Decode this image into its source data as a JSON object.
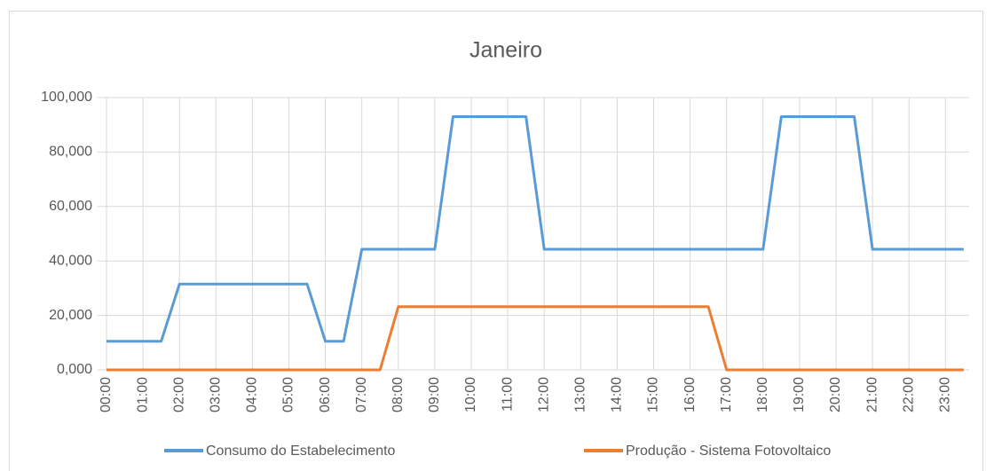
{
  "chart_data": {
    "type": "line",
    "title": "Janeiro",
    "categories": [
      "00:00",
      null,
      "01:00",
      null,
      "02:00",
      null,
      "03:00",
      null,
      "04:00",
      null,
      "05:00",
      null,
      "06:00",
      null,
      "07:00",
      null,
      "08:00",
      null,
      "09:00",
      null,
      "10:00",
      null,
      "11:00",
      null,
      "12:00",
      null,
      "13:00",
      null,
      "14:00",
      null,
      "15:00",
      null,
      "16:00",
      null,
      "17:00",
      null,
      "18:00",
      null,
      "19:00",
      null,
      "20:00",
      null,
      "21:00",
      null,
      "22:00",
      null,
      "23:00",
      null
    ],
    "series": [
      {
        "name": "Consumo do Estabelecimento",
        "color": "#5b9bd5",
        "values": [
          10.5,
          10.5,
          10.5,
          10.5,
          31.5,
          31.5,
          31.5,
          31.5,
          31.5,
          31.5,
          31.5,
          31.5,
          10.5,
          10.5,
          44.3,
          44.3,
          44.3,
          44.3,
          44.3,
          93,
          93,
          93,
          93,
          93,
          44.3,
          44.3,
          44.3,
          44.3,
          44.3,
          44.3,
          44.3,
          44.3,
          44.3,
          44.3,
          44.3,
          44.3,
          44.3,
          93,
          93,
          93,
          93,
          93,
          44.3,
          44.3,
          44.3,
          44.3,
          44.3,
          44.3
        ]
      },
      {
        "name": "Produção - Sistema Fotovoltaico",
        "color": "#ed7d31",
        "values": [
          0,
          0,
          0,
          0,
          0,
          0,
          0,
          0,
          0,
          0,
          0,
          0,
          0,
          0,
          0,
          0,
          23.2,
          23.2,
          23.2,
          23.2,
          23.2,
          23.2,
          23.2,
          23.2,
          23.2,
          23.2,
          23.2,
          23.2,
          23.2,
          23.2,
          23.2,
          23.2,
          23.2,
          23.2,
          0,
          0,
          0,
          0,
          0,
          0,
          0,
          0,
          0,
          0,
          0,
          0,
          0,
          0
        ]
      }
    ],
    "ylim": [
      0,
      100
    ],
    "yticks": [
      {
        "value": 0,
        "label": "0,000"
      },
      {
        "value": 20,
        "label": "20,000"
      },
      {
        "value": 40,
        "label": "40,000"
      },
      {
        "value": 60,
        "label": "60,000"
      },
      {
        "value": 80,
        "label": "80,000"
      },
      {
        "value": 100,
        "label": "100,000"
      }
    ],
    "grid": true,
    "legend": "bottom"
  }
}
